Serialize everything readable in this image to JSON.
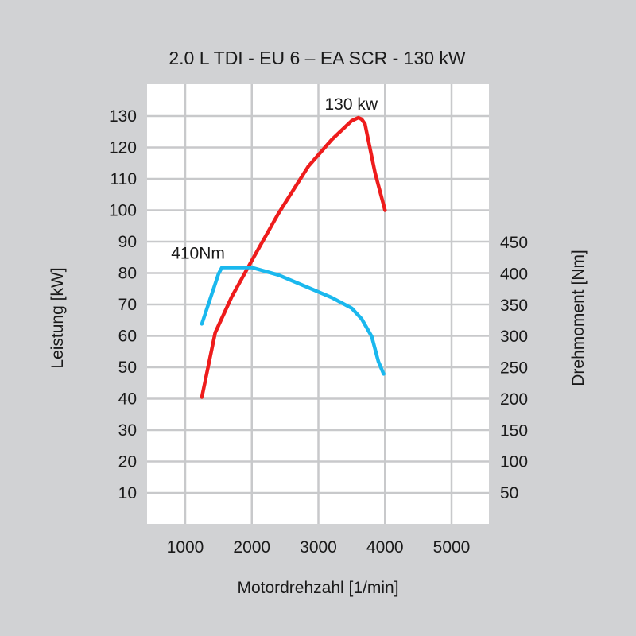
{
  "chart_data": {
    "type": "line",
    "title": "2.0 L TDI - EU 6 – EA SCR - 130 kW",
    "xlabel": "Motordrehzahl [1/min]",
    "ylabel_left": "Leistung [kW]",
    "ylabel_right": "Drehmoment [Nm]",
    "xlim": [
      500,
      5500
    ],
    "ylim_left": [
      0,
      140
    ],
    "ylim_right": [
      0,
      700
    ],
    "x_ticks": [
      1000,
      2000,
      3000,
      4000,
      5000
    ],
    "y_left_ticks": [
      10,
      20,
      30,
      40,
      50,
      60,
      70,
      80,
      90,
      100,
      110,
      120,
      130
    ],
    "y_right_ticks": [
      50,
      100,
      150,
      200,
      250,
      300,
      350,
      400,
      450
    ],
    "grid": true,
    "colors": {
      "power": "#ee1c1c",
      "torque": "#1ab8ee",
      "grid": "#c8c9cb",
      "plot_bg": "#ffffff"
    },
    "series": [
      {
        "key": "power",
        "axis": "left",
        "x": [
          1250,
          1450,
          1700,
          2000,
          2400,
          2850,
          3200,
          3500,
          3600,
          3650,
          3700,
          3850,
          4000
        ],
        "y": [
          40.5,
          61,
          72.5,
          84,
          99,
          114,
          122.5,
          128.5,
          129.5,
          129,
          127.5,
          112,
          100
        ]
      },
      {
        "key": "torque",
        "axis": "right",
        "x": [
          1250,
          1500,
          1550,
          1700,
          2000,
          2400,
          2800,
          3200,
          3500,
          3650,
          3800,
          3900,
          3980
        ],
        "y": [
          320,
          400,
          410,
          410,
          410,
          398,
          380,
          362,
          345,
          328,
          300,
          260,
          240
        ]
      }
    ],
    "annotations": [
      {
        "text": "130 kw",
        "x": 3600,
        "y": 129.5,
        "axis": "left"
      },
      {
        "text": "410Nm",
        "x": 1550,
        "y": 410,
        "axis": "right"
      }
    ]
  }
}
